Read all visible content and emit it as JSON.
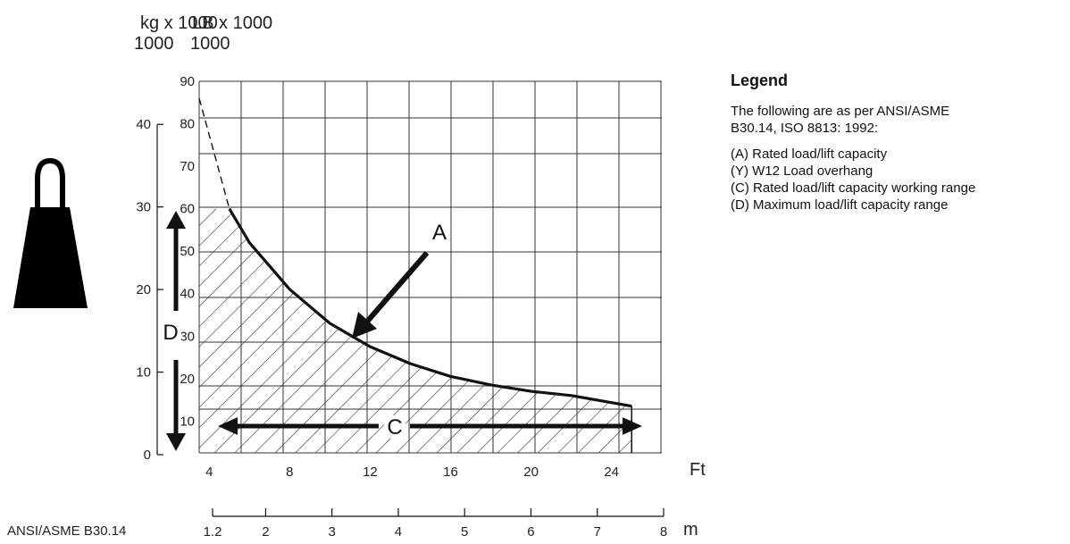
{
  "chart_data": {
    "type": "line",
    "title": "",
    "xlabel": "Ft",
    "x2label": "m",
    "y_labels": [
      "kg x 1000",
      "LB x 1000"
    ],
    "y_left_ticks": [
      0,
      10,
      20,
      30,
      40
    ],
    "y_right_ticks": [
      10,
      20,
      30,
      40,
      50,
      60,
      70,
      80,
      90
    ],
    "x_ticks": [
      4,
      8,
      12,
      16,
      20,
      24
    ],
    "x_m_ticks": [
      "1.2",
      "2",
      "3",
      "4",
      "5",
      "6",
      "7",
      "8"
    ],
    "xlim": [
      3.5,
      26.5
    ],
    "ylim": [
      2.5,
      90
    ],
    "grid": true,
    "series": [
      {
        "name": "A",
        "x": [
          5,
          6,
          8,
          10,
          12,
          14,
          16,
          18,
          20,
          22,
          25
        ],
        "y": [
          60,
          52,
          41,
          33,
          27.5,
          23.5,
          20.5,
          18.5,
          17,
          16,
          13.5
        ]
      }
    ],
    "dashed_extension": {
      "x": [
        3.5,
        5
      ],
      "y": [
        86,
        60
      ]
    },
    "annotations": {
      "A": "A",
      "C": "C",
      "D": "D"
    }
  },
  "legend": {
    "title": "Legend",
    "intro": "The following are as per ANSI/ASME B30.14, ISO 8813: 1992:",
    "items": [
      "(A) Rated load/lift capacity",
      "(Y) W12 Load overhang",
      "(C) Rated load/lift capacity working range",
      "(D) Maximum load/lift capacity range"
    ]
  },
  "footnote": "ANSI/ASME B30.14",
  "icons": {
    "weight": "weight-icon"
  },
  "colors": {
    "ink": "#111111",
    "grid": "#333333"
  }
}
